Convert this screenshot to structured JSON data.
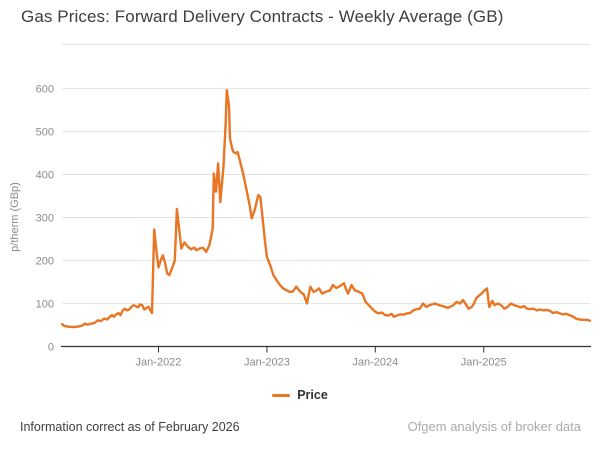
{
  "title": "Gas Prices: Forward Delivery Contracts - Weekly Average (GB)",
  "legend": {
    "label": "Price"
  },
  "footer": {
    "left": "Information correct as of February 2026",
    "right": "Ofgem analysis of broker data"
  },
  "colors": {
    "line": "#e87624",
    "grid": "#e4e4e4",
    "axis": "#333333",
    "axis_text": "#8b8b8b",
    "title_text": "#3e3e3e",
    "muted_text": "#ababab"
  },
  "chart_data": {
    "type": "line",
    "title": "Gas Prices: Forward Delivery Contracts - Weekly Average (GB)",
    "xlabel": "",
    "ylabel": "p/therm (GBp)",
    "ylim": [
      0,
      600
    ],
    "yticks": [
      0,
      100,
      200,
      300,
      400,
      500,
      600
    ],
    "xlim": [
      2021.11,
      2025.98
    ],
    "xticks": [
      {
        "t": 2022,
        "label": "Jan-2022"
      },
      {
        "t": 2023,
        "label": "Jan-2023"
      },
      {
        "t": 2024,
        "label": "Jan-2024"
      },
      {
        "t": 2025,
        "label": "Jan-2025"
      }
    ],
    "grid": true,
    "legend_position": "bottom",
    "series": [
      {
        "name": "Price",
        "color": "#e87624",
        "points": [
          [
            2021.11,
            52
          ],
          [
            2021.13,
            48
          ],
          [
            2021.17,
            46
          ],
          [
            2021.21,
            45
          ],
          [
            2021.25,
            46
          ],
          [
            2021.29,
            48
          ],
          [
            2021.32,
            53
          ],
          [
            2021.35,
            51
          ],
          [
            2021.38,
            53
          ],
          [
            2021.41,
            55
          ],
          [
            2021.44,
            61
          ],
          [
            2021.47,
            59
          ],
          [
            2021.5,
            65
          ],
          [
            2021.53,
            63
          ],
          [
            2021.55,
            69
          ],
          [
            2021.57,
            73
          ],
          [
            2021.59,
            69
          ],
          [
            2021.61,
            75
          ],
          [
            2021.63,
            78
          ],
          [
            2021.65,
            73
          ],
          [
            2021.67,
            84
          ],
          [
            2021.69,
            88
          ],
          [
            2021.71,
            84
          ],
          [
            2021.73,
            86
          ],
          [
            2021.75,
            92
          ],
          [
            2021.77,
            96
          ],
          [
            2021.79,
            94
          ],
          [
            2021.81,
            91
          ],
          [
            2021.83,
            98
          ],
          [
            2021.85,
            96
          ],
          [
            2021.87,
            86
          ],
          [
            2021.89,
            90
          ],
          [
            2021.91,
            92
          ],
          [
            2021.93,
            82
          ],
          [
            2021.94,
            78
          ],
          [
            2021.96,
            272
          ],
          [
            2021.98,
            225
          ],
          [
            2022.0,
            184
          ],
          [
            2022.02,
            200
          ],
          [
            2022.04,
            212
          ],
          [
            2022.06,
            195
          ],
          [
            2022.08,
            170
          ],
          [
            2022.1,
            166
          ],
          [
            2022.13,
            185
          ],
          [
            2022.15,
            200
          ],
          [
            2022.17,
            320
          ],
          [
            2022.19,
            274
          ],
          [
            2022.21,
            228
          ],
          [
            2022.24,
            242
          ],
          [
            2022.27,
            232
          ],
          [
            2022.3,
            226
          ],
          [
            2022.33,
            230
          ],
          [
            2022.35,
            224
          ],
          [
            2022.38,
            228
          ],
          [
            2022.41,
            230
          ],
          [
            2022.44,
            220
          ],
          [
            2022.47,
            236
          ],
          [
            2022.5,
            274
          ],
          [
            2022.51,
            402
          ],
          [
            2022.53,
            360
          ],
          [
            2022.55,
            426
          ],
          [
            2022.57,
            336
          ],
          [
            2022.6,
            420
          ],
          [
            2022.62,
            520
          ],
          [
            2022.63,
            596
          ],
          [
            2022.65,
            560
          ],
          [
            2022.66,
            484
          ],
          [
            2022.68,
            460
          ],
          [
            2022.69,
            453
          ],
          [
            2022.71,
            449
          ],
          [
            2022.73,
            452
          ],
          [
            2022.75,
            433
          ],
          [
            2022.78,
            402
          ],
          [
            2022.81,
            367
          ],
          [
            2022.84,
            329
          ],
          [
            2022.86,
            298
          ],
          [
            2022.89,
            320
          ],
          [
            2022.92,
            352
          ],
          [
            2022.94,
            348
          ],
          [
            2022.96,
            298
          ],
          [
            2022.98,
            251
          ],
          [
            2023.0,
            208
          ],
          [
            2023.03,
            189
          ],
          [
            2023.06,
            166
          ],
          [
            2023.09,
            154
          ],
          [
            2023.12,
            143
          ],
          [
            2023.15,
            135
          ],
          [
            2023.18,
            131
          ],
          [
            2023.21,
            127
          ],
          [
            2023.24,
            128
          ],
          [
            2023.27,
            139
          ],
          [
            2023.31,
            127
          ],
          [
            2023.34,
            121
          ],
          [
            2023.37,
            100
          ],
          [
            2023.4,
            139
          ],
          [
            2023.43,
            127
          ],
          [
            2023.46,
            131
          ],
          [
            2023.48,
            135
          ],
          [
            2023.51,
            123
          ],
          [
            2023.54,
            127
          ],
          [
            2023.58,
            130
          ],
          [
            2023.61,
            143
          ],
          [
            2023.64,
            136
          ],
          [
            2023.67,
            140
          ],
          [
            2023.71,
            147
          ],
          [
            2023.73,
            133
          ],
          [
            2023.75,
            123
          ],
          [
            2023.78,
            143
          ],
          [
            2023.81,
            131
          ],
          [
            2023.85,
            127
          ],
          [
            2023.88,
            123
          ],
          [
            2023.91,
            104
          ],
          [
            2023.94,
            96
          ],
          [
            2023.97,
            88
          ],
          [
            2024.0,
            81
          ],
          [
            2024.03,
            77
          ],
          [
            2024.06,
            79
          ],
          [
            2024.09,
            73
          ],
          [
            2024.12,
            72
          ],
          [
            2024.15,
            76
          ],
          [
            2024.17,
            69
          ],
          [
            2024.2,
            72
          ],
          [
            2024.23,
            75
          ],
          [
            2024.26,
            74
          ],
          [
            2024.29,
            77
          ],
          [
            2024.32,
            78
          ],
          [
            2024.35,
            84
          ],
          [
            2024.38,
            87
          ],
          [
            2024.41,
            88
          ],
          [
            2024.44,
            100
          ],
          [
            2024.47,
            92
          ],
          [
            2024.5,
            96
          ],
          [
            2024.55,
            100
          ],
          [
            2024.58,
            97
          ],
          [
            2024.62,
            94
          ],
          [
            2024.67,
            90
          ],
          [
            2024.72,
            96
          ],
          [
            2024.75,
            104
          ],
          [
            2024.78,
            100
          ],
          [
            2024.81,
            108
          ],
          [
            2024.84,
            96
          ],
          [
            2024.86,
            88
          ],
          [
            2024.89,
            92
          ],
          [
            2024.91,
            100
          ],
          [
            2024.93,
            112
          ],
          [
            2024.96,
            119
          ],
          [
            2024.98,
            123
          ],
          [
            2025.01,
            131
          ],
          [
            2025.03,
            135
          ],
          [
            2025.05,
            92
          ],
          [
            2025.08,
            106
          ],
          [
            2025.1,
            96
          ],
          [
            2025.13,
            100
          ],
          [
            2025.16,
            96
          ],
          [
            2025.19,
            88
          ],
          [
            2025.22,
            92
          ],
          [
            2025.25,
            100
          ],
          [
            2025.28,
            96
          ],
          [
            2025.31,
            94
          ],
          [
            2025.34,
            91
          ],
          [
            2025.37,
            94
          ],
          [
            2025.4,
            88
          ],
          [
            2025.43,
            87
          ],
          [
            2025.46,
            88
          ],
          [
            2025.49,
            84
          ],
          [
            2025.52,
            86
          ],
          [
            2025.55,
            84
          ],
          [
            2025.58,
            85
          ],
          [
            2025.61,
            83
          ],
          [
            2025.64,
            78
          ],
          [
            2025.67,
            80
          ],
          [
            2025.7,
            77
          ],
          [
            2025.73,
            75
          ],
          [
            2025.76,
            76
          ],
          [
            2025.79,
            73
          ],
          [
            2025.82,
            70
          ],
          [
            2025.85,
            65
          ],
          [
            2025.88,
            63
          ],
          [
            2025.92,
            62
          ],
          [
            2025.95,
            62
          ],
          [
            2025.98,
            60
          ]
        ]
      }
    ]
  }
}
